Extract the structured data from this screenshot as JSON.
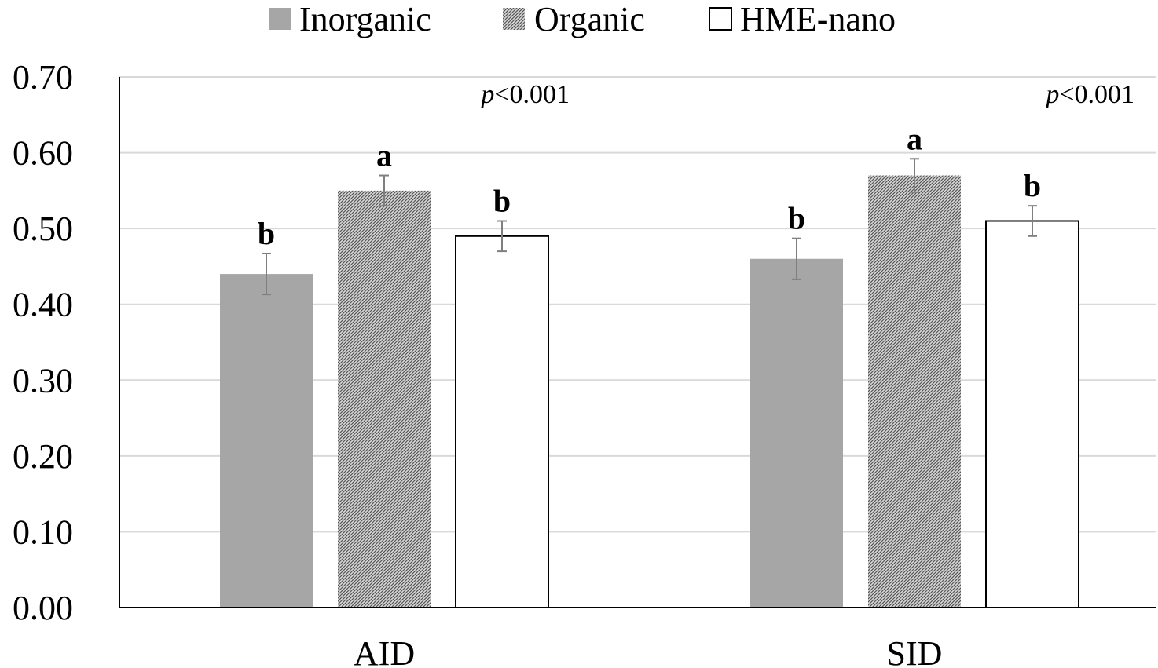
{
  "chart_data": {
    "type": "bar",
    "title": "",
    "xlabel": "",
    "ylabel": "",
    "ylim": [
      0,
      0.7
    ],
    "yticks": [
      "0.00",
      "0.10",
      "0.20",
      "0.30",
      "0.40",
      "0.50",
      "0.60",
      "0.70"
    ],
    "categories": [
      "AID",
      "SID"
    ],
    "grid": true,
    "legend": "top-center",
    "series": [
      {
        "name": "Inorganic",
        "values": [
          0.44,
          0.46
        ],
        "errors": [
          0.027,
          0.027
        ],
        "letters": [
          "b",
          "b"
        ],
        "fill": "#a6a6a6",
        "pattern": "solid"
      },
      {
        "name": "Organic",
        "values": [
          0.55,
          0.57
        ],
        "errors": [
          0.02,
          0.022
        ],
        "letters": [
          "a",
          "a"
        ],
        "fill": "#a6a6a6",
        "pattern": "hatched"
      },
      {
        "name": "HME-nano",
        "values": [
          0.49,
          0.51
        ],
        "errors": [
          0.02,
          0.02
        ],
        "letters": [
          "b",
          "b"
        ],
        "fill": "#ffffff",
        "pattern": "outline"
      }
    ],
    "annotations": [
      {
        "prefix": "p",
        "suffix": "<0.001",
        "category": "AID"
      },
      {
        "prefix": "p",
        "suffix": "<0.001",
        "category": "SID"
      }
    ]
  }
}
